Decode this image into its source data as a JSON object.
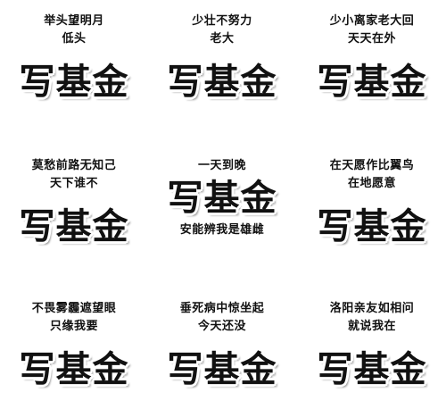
{
  "cells": [
    {
      "lines": [
        "举头望明月",
        "低头"
      ],
      "big": "写基金"
    },
    {
      "lines": [
        "少壮不努力",
        "老大"
      ],
      "big": "写基金"
    },
    {
      "lines": [
        "少小离家老大回",
        "天天在外"
      ],
      "big": "写基金"
    },
    {
      "lines": [
        "莫愁前路无知己",
        "天下谁不"
      ],
      "big": "写基金"
    },
    {
      "lines": [
        "一天到晚"
      ],
      "big": "写基金",
      "after": "安能辨我是雄雌"
    },
    {
      "lines": [
        "在天愿作比翼鸟",
        "在地愿意"
      ],
      "big": "写基金"
    },
    {
      "lines": [
        "不畏雾霾遮望眼",
        "只缘我要"
      ],
      "big": "写基金"
    },
    {
      "lines": [
        "垂死病中惊坐起",
        "今天还没"
      ],
      "big": "写基金"
    },
    {
      "lines": [
        "洛阳亲友如相问",
        "就说我在"
      ],
      "big": "写基金"
    }
  ]
}
